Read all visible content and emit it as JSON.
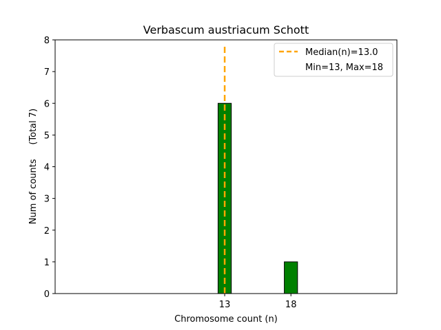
{
  "chart_data": {
    "type": "bar",
    "title": "Verbascum austriacum Schott",
    "xlabel": "Chromosome count (n)",
    "ylabel": "Num of counts     (Total 7)",
    "bar_color": "#008000",
    "bar_edge_color": "#000000",
    "median_color": "#FFA500",
    "x": [
      13,
      18
    ],
    "values": [
      6,
      1
    ],
    "xticks": [
      13,
      18
    ],
    "yticks": [
      0,
      1,
      2,
      3,
      4,
      5,
      6,
      7,
      8
    ],
    "xlim": [
      0.2,
      26
    ],
    "ylim": [
      0,
      8
    ],
    "bar_width": 1,
    "median": 13.0,
    "legend": {
      "position": "top-right",
      "median_label": "Median(n)=13.0",
      "range_label": "Min=13, Max=18"
    },
    "grid": false
  }
}
